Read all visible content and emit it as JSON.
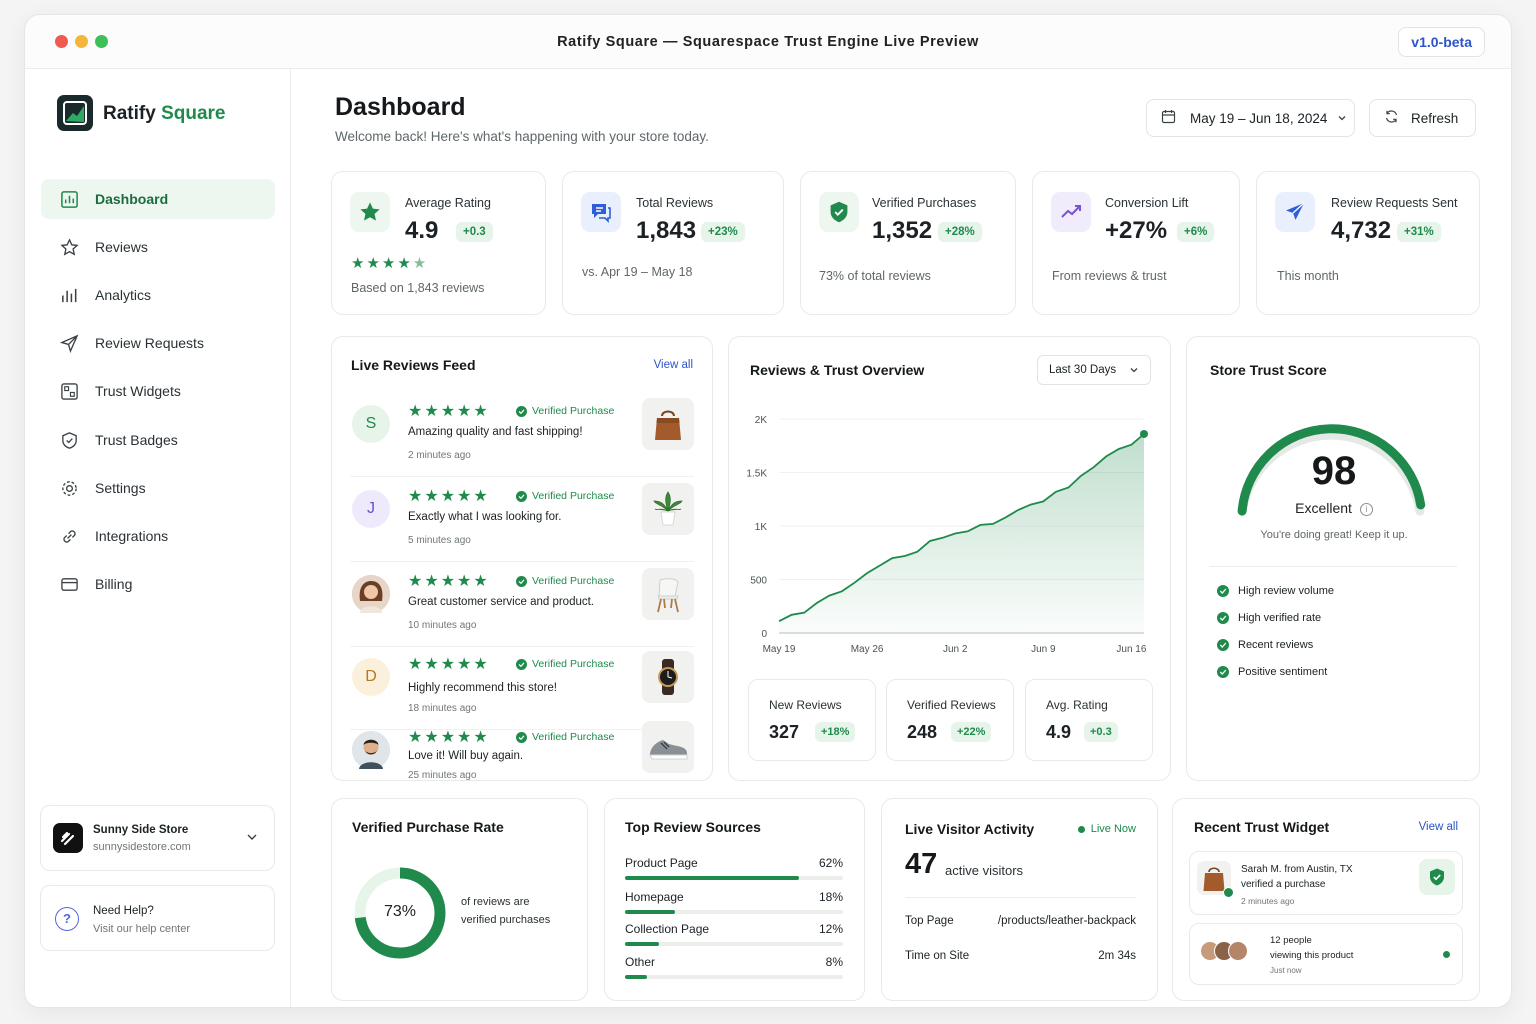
{
  "window": {
    "title": "Ratify Square — Squarespace Trust Engine Live Preview",
    "version": "v1.0-beta"
  },
  "brand": {
    "name_part1": "Ratify",
    "name_part2": "Square",
    "accent": "#1f8a4c"
  },
  "sidebar": {
    "items": [
      {
        "label": "Dashboard",
        "icon": "dashboard-icon"
      },
      {
        "label": "Reviews",
        "icon": "star-icon"
      },
      {
        "label": "Analytics",
        "icon": "bar-chart-icon"
      },
      {
        "label": "Review Requests",
        "icon": "send-icon"
      },
      {
        "label": "Trust Widgets",
        "icon": "widgets-icon"
      },
      {
        "label": "Trust Badges",
        "icon": "shield-icon"
      },
      {
        "label": "Settings",
        "icon": "gear-icon"
      },
      {
        "label": "Integrations",
        "icon": "link-icon"
      },
      {
        "label": "Billing",
        "icon": "card-icon"
      }
    ],
    "store": {
      "name": "Sunny Side Store",
      "url": "sunnysidestore.com"
    },
    "help": {
      "title": "Need Help?",
      "subtitle": "Visit our help center"
    }
  },
  "header": {
    "title": "Dashboard",
    "subtitle": "Welcome back! Here's what's happening with your store today.",
    "date_range": "May 19 – Jun 18, 2024",
    "refresh_label": "Refresh"
  },
  "kpis": [
    {
      "label": "Average Rating",
      "value": "4.9",
      "delta": "+0.3",
      "sub": "Based on 1,843 reviews"
    },
    {
      "label": "Total Reviews",
      "value": "1,843",
      "delta": "+23%",
      "sub": "vs. Apr 19 – May 18"
    },
    {
      "label": "Verified Purchases",
      "value": "1,352",
      "delta": "+28%",
      "sub": "73% of total reviews"
    },
    {
      "label": "Conversion Lift",
      "value": "+27%",
      "delta": "+6%",
      "sub": "From reviews & trust"
    },
    {
      "label": "Review Requests Sent",
      "value": "4,732",
      "delta": "+31%",
      "sub": "This month"
    }
  ],
  "feed": {
    "title": "Live Reviews Feed",
    "view_all": "View all",
    "verified_label": "Verified Purchase",
    "stars": "★★★★★",
    "reviews": [
      {
        "initial": "S",
        "text": "Amazing quality and fast shipping!",
        "time": "2 minutes ago"
      },
      {
        "initial": "J",
        "text": "Exactly what I was looking for.",
        "time": "5 minutes ago"
      },
      {
        "initial": "",
        "text": "Great customer service and product.",
        "time": "10 minutes ago"
      },
      {
        "initial": "D",
        "text": "Highly recommend this store!",
        "time": "18 minutes ago"
      },
      {
        "initial": "",
        "text": "Love it! Will buy again.",
        "time": "25 minutes ago"
      }
    ]
  },
  "overview": {
    "title": "Reviews & Trust Overview",
    "range_select": "Last 30 Days",
    "stats": [
      {
        "label": "New Reviews",
        "value": "327",
        "delta": "+18%"
      },
      {
        "label": "Verified Reviews",
        "value": "248",
        "delta": "+22%"
      },
      {
        "label": "Avg. Rating",
        "value": "4.9",
        "delta": "+0.3"
      }
    ]
  },
  "chart_data": {
    "type": "area",
    "x": [
      "May 19",
      "May 20",
      "May 21",
      "May 22",
      "May 23",
      "May 24",
      "May 25",
      "May 26",
      "May 27",
      "May 28",
      "May 29",
      "May 30",
      "May 31",
      "Jun 1",
      "Jun 2",
      "Jun 3",
      "Jun 4",
      "Jun 5",
      "Jun 6",
      "Jun 7",
      "Jun 8",
      "Jun 9",
      "Jun 10",
      "Jun 11",
      "Jun 12",
      "Jun 13",
      "Jun 14",
      "Jun 15",
      "Jun 16",
      "Jun 17"
    ],
    "values": [
      110,
      170,
      190,
      280,
      350,
      390,
      470,
      560,
      630,
      700,
      720,
      760,
      860,
      890,
      930,
      950,
      1010,
      1020,
      1080,
      1150,
      1200,
      1230,
      1320,
      1360,
      1470,
      1550,
      1650,
      1720,
      1760,
      1860
    ],
    "xticks": [
      "May 19",
      "May 26",
      "Jun 2",
      "Jun 9",
      "Jun 16"
    ],
    "yticks": [
      "0",
      "500",
      "1K",
      "1.5K",
      "2K"
    ],
    "ylim": [
      0,
      2000
    ],
    "color": "#1f8a4c"
  },
  "trust_score": {
    "title": "Store Trust Score",
    "value": "98",
    "score_fraction": 0.98,
    "label": "Excellent",
    "note": "You're doing great! Keep it up.",
    "checks": [
      "High review volume",
      "High verified rate",
      "Recent reviews",
      "Positive sentiment"
    ]
  },
  "verified_rate": {
    "title": "Verified Purchase Rate",
    "value": "73%",
    "fraction": 0.73,
    "caption_1": "of reviews are",
    "caption_2": "verified purchases"
  },
  "sources": {
    "title": "Top Review Sources",
    "rows": [
      {
        "label": "Product Page",
        "pct": "62%",
        "fraction": 0.62
      },
      {
        "label": "Homepage",
        "pct": "18%",
        "fraction": 0.18
      },
      {
        "label": "Collection Page",
        "pct": "12%",
        "fraction": 0.12
      },
      {
        "label": "Other",
        "pct": "8%",
        "fraction": 0.08
      }
    ]
  },
  "visitors": {
    "title": "Live Visitor Activity",
    "live": "Live Now",
    "count": "47",
    "count_label": "active visitors",
    "top_page_label": "Top Page",
    "top_page_value": "/products/leather-backpack",
    "time_label": "Time on Site",
    "time_value": "2m 34s"
  },
  "recent_widget": {
    "title": "Recent Trust Widget",
    "view_all": "View all",
    "item1_line1": "Sarah M. from Austin, TX",
    "item1_line2": "verified a purchase",
    "item1_time": "2 minutes ago",
    "item2_line1": "12 people",
    "item2_line2": "viewing this product",
    "item2_time": "Just now"
  }
}
